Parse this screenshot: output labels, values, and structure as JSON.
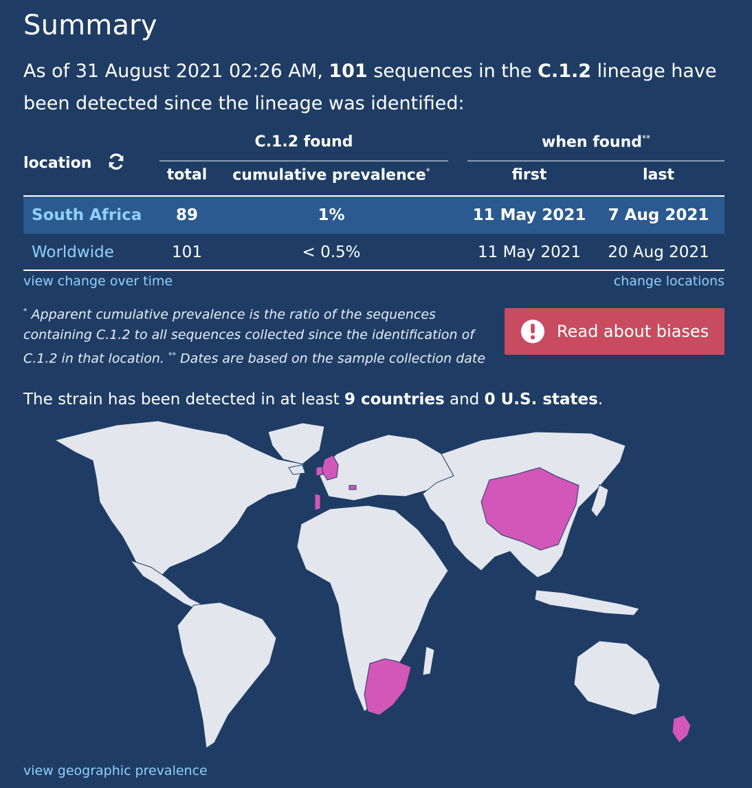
{
  "summary": {
    "title": "Summary",
    "intro_prefix": "As of 31 August 2021 02:26 AM, ",
    "sequence_count": "101",
    "intro_middle": " sequences in the ",
    "lineage": "C.1.2",
    "intro_suffix": " lineage have been detected since the lineage was identified:"
  },
  "table": {
    "location_header": "location",
    "group_found": "C.1.2 found",
    "group_when": "when found",
    "group_when_mark": "**",
    "col_total": "total",
    "col_prevalence": "cumulative prevalence",
    "col_prevalence_mark": "*",
    "col_first": "first",
    "col_last": "last",
    "rows": [
      {
        "location": "South Africa",
        "total": "89",
        "prevalence": "1%",
        "first": "11 May 2021",
        "last": "7 Aug 2021"
      },
      {
        "location": "Worldwide",
        "total": "101",
        "prevalence": "< 0.5%",
        "first": "11 May 2021",
        "last": "20 Aug 2021"
      }
    ]
  },
  "links": {
    "view_change": "view change over time",
    "change_locations": "change locations",
    "view_geo": "view geographic prevalence"
  },
  "footnote": {
    "mark1": "*",
    "text1": " Apparent cumulative prevalence is the ratio of the sequences containing C.1.2 to all sequences collected since the identification of C.1.2 in that location.  ",
    "mark2": "**",
    "text2": " Dates are based on the sample collection date"
  },
  "biases_button": {
    "label": "Read about biases",
    "icon": "alert-circle-icon",
    "color": "#c94b5f"
  },
  "detected": {
    "prefix": "The strain has been detected in at least ",
    "countries": "9 countries",
    "middle": " and ",
    "states": "0 U.S. states",
    "suffix": "."
  },
  "map": {
    "land_color": "#e4e6ee",
    "detected_color": "#d257b8",
    "ocean_color": "#1f3d64"
  }
}
